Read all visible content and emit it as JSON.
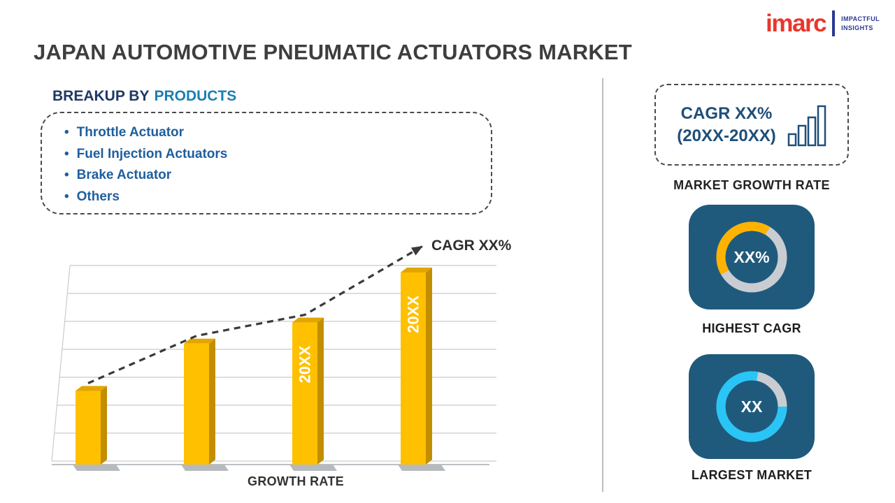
{
  "header": {
    "title": "JAPAN AUTOMOTIVE PNEUMATIC ACTUATORS MARKET",
    "logo": {
      "brand": "imarc",
      "tagline1": "IMPACTFUL",
      "tagline2": "INSIGHTS"
    }
  },
  "breakup": {
    "heading_prefix": "BREAKUP BY",
    "heading_highlight": "PRODUCTS",
    "items": [
      "Throttle Actuator",
      "Fuel Injection Actuators",
      "Brake Actuator",
      "Others"
    ]
  },
  "chart_data": [
    {
      "type": "bar",
      "title": "",
      "xlabel": "GROWTH RATE",
      "ylabel": "",
      "categories": [
        "",
        "",
        "20XX",
        "20XX"
      ],
      "bar_labels": [
        "",
        "",
        "20XX",
        "20XX"
      ],
      "values": [
        28,
        46,
        54,
        73
      ],
      "ylim": [
        0,
        80
      ],
      "bar_color": "#FFC000",
      "gridlines": true,
      "trend": {
        "style": "dashed-arrow",
        "label": "CAGR XX%",
        "color": "#3A3A3A"
      }
    },
    {
      "type": "pie",
      "variant": "donut",
      "title": "HIGHEST CAGR",
      "center_text": "XX%",
      "slices": [
        {
          "name": "cagr-arc",
          "value": 42,
          "color": "#FFB300"
        },
        {
          "name": "track",
          "value": 58,
          "color": "#C9CDD1"
        }
      ]
    },
    {
      "type": "pie",
      "variant": "donut",
      "title": "LARGEST MARKET",
      "center_text": "XX",
      "slices": [
        {
          "name": "market-arc",
          "value": 78,
          "color": "#29C5F6"
        },
        {
          "name": "track",
          "value": 22,
          "color": "#C9CDD1"
        }
      ]
    }
  ],
  "right_panel": {
    "cagr_box_line1": "CAGR XX%",
    "cagr_box_line2": "(20XX-20XX)",
    "growth_rate_caption": "MARKET GROWTH RATE",
    "highest_cagr_caption": "HIGHEST CAGR",
    "largest_market_caption": "LARGEST MARKET"
  }
}
